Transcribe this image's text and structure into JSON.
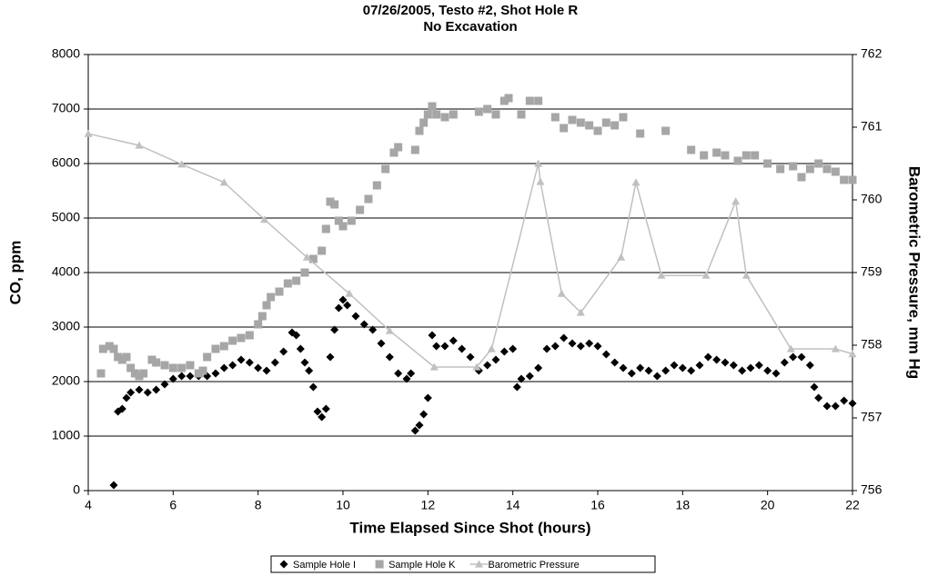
{
  "chart_data": {
    "type": "scatter",
    "title": "07/26/2005, Testo #2, Shot Hole R",
    "subtitle": "No Excavation",
    "x_label": "Time Elapsed Since Shot (hours)",
    "y_label": "CO, ppm",
    "y2_label": "Barometric Pressure, mm Hg",
    "xlim": [
      4,
      22
    ],
    "xticks": [
      4,
      6,
      8,
      10,
      12,
      14,
      16,
      18,
      20,
      22
    ],
    "ylim": [
      0,
      8000
    ],
    "yticks": [
      0,
      1000,
      2000,
      3000,
      4000,
      5000,
      6000,
      7000,
      8000
    ],
    "y2lim": [
      756,
      762
    ],
    "y2ticks": [
      756,
      757,
      758,
      759,
      760,
      761,
      762
    ],
    "grid": true,
    "legend": "bottom",
    "series": [
      {
        "name": "Sample Hole I",
        "color": "#000000",
        "marker": "diamond",
        "x": [
          4.6,
          4.7,
          4.8,
          4.9,
          5.0,
          5.2,
          5.4,
          5.6,
          5.8,
          6.0,
          6.2,
          6.4,
          6.6,
          6.8,
          7.0,
          7.2,
          7.4,
          7.6,
          7.8,
          8.0,
          8.2,
          8.4,
          8.6,
          8.8,
          8.9,
          9.0,
          9.1,
          9.2,
          9.3,
          9.4,
          9.5,
          9.6,
          9.7,
          9.8,
          9.9,
          10.0,
          10.1,
          10.3,
          10.5,
          10.7,
          10.9,
          11.1,
          11.3,
          11.5,
          11.6,
          11.7,
          11.8,
          11.9,
          12.0,
          12.1,
          12.2,
          12.4,
          12.6,
          12.8,
          13.0,
          13.2,
          13.4,
          13.6,
          13.8,
          14.0,
          14.1,
          14.2,
          14.4,
          14.6,
          14.8,
          15.0,
          15.2,
          15.4,
          15.6,
          15.8,
          16.0,
          16.2,
          16.4,
          16.6,
          16.8,
          17.0,
          17.2,
          17.4,
          17.6,
          17.8,
          18.0,
          18.2,
          18.4,
          18.6,
          18.8,
          19.0,
          19.2,
          19.4,
          19.6,
          19.8,
          20.0,
          20.2,
          20.4,
          20.6,
          20.8,
          21.0,
          21.1,
          21.2,
          21.4,
          21.6,
          21.8,
          22.0
        ],
        "values": [
          100,
          1450,
          1500,
          1700,
          1800,
          1850,
          1800,
          1850,
          1950,
          2050,
          2100,
          2100,
          2100,
          2100,
          2150,
          2250,
          2300,
          2400,
          2350,
          2250,
          2200,
          2350,
          2550,
          2900,
          2850,
          2600,
          2350,
          2200,
          1900,
          1450,
          1350,
          1500,
          2450,
          2950,
          3350,
          3500,
          3400,
          3200,
          3050,
          2950,
          2700,
          2450,
          2150,
          2050,
          2150,
          1100,
          1200,
          1400,
          1700,
          2850,
          2650,
          2650,
          2750,
          2600,
          2450,
          2200,
          2300,
          2400,
          2550,
          2600,
          1900,
          2050,
          2100,
          2250,
          2600,
          2650,
          2800,
          2700,
          2650,
          2700,
          2650,
          2500,
          2350,
          2250,
          2150,
          2250,
          2200,
          2100,
          2200,
          2300,
          2250,
          2200,
          2300,
          2450,
          2400,
          2350,
          2300,
          2200,
          2250,
          2300,
          2200,
          2150,
          2350,
          2450,
          2450,
          2300,
          1900,
          1700,
          1550,
          1550,
          1650,
          1600
        ]
      },
      {
        "name": "Sample Hole K",
        "color": "#a6a6a6",
        "marker": "square",
        "x": [
          4.3,
          4.35,
          4.5,
          4.6,
          4.7,
          4.8,
          4.9,
          5.0,
          5.1,
          5.2,
          5.3,
          5.5,
          5.6,
          5.8,
          6.0,
          6.2,
          6.4,
          6.6,
          6.7,
          6.8,
          7.0,
          7.2,
          7.4,
          7.6,
          7.8,
          8.0,
          8.1,
          8.2,
          8.3,
          8.5,
          8.7,
          8.9,
          9.1,
          9.3,
          9.5,
          9.6,
          9.7,
          9.8,
          9.9,
          10.0,
          10.2,
          10.4,
          10.6,
          10.8,
          11.0,
          11.2,
          11.3,
          11.7,
          11.8,
          11.9,
          12.0,
          12.1,
          12.2,
          12.4,
          12.6,
          13.2,
          13.4,
          13.6,
          13.8,
          13.9,
          14.2,
          14.4,
          14.6,
          15.0,
          15.2,
          15.4,
          15.6,
          15.8,
          16.0,
          16.2,
          16.4,
          16.6,
          17.0,
          17.6,
          18.2,
          18.5,
          18.8,
          19.0,
          19.3,
          19.5,
          19.7,
          20.0,
          20.3,
          20.6,
          20.8,
          21.0,
          21.2,
          21.4,
          21.6,
          21.8,
          22.0
        ],
        "values": [
          2150,
          2600,
          2650,
          2600,
          2450,
          2400,
          2450,
          2250,
          2150,
          2100,
          2150,
          2400,
          2350,
          2300,
          2250,
          2250,
          2300,
          2150,
          2200,
          2450,
          2600,
          2650,
          2750,
          2800,
          2850,
          3050,
          3200,
          3400,
          3550,
          3650,
          3800,
          3850,
          4000,
          4250,
          4400,
          4800,
          5300,
          5250,
          4950,
          4850,
          4950,
          5150,
          5350,
          5600,
          5900,
          6200,
          6300,
          6250,
          6600,
          6750,
          6900,
          7050,
          6900,
          6850,
          6900,
          6950,
          7000,
          6900,
          7150,
          7200,
          6900,
          7150,
          7150,
          6850,
          6650,
          6800,
          6750,
          6700,
          6600,
          6750,
          6700,
          6850,
          6550,
          6600,
          6250,
          6150,
          6200,
          6150,
          6050,
          6150,
          6150,
          6000,
          5900,
          5950,
          5750,
          5900,
          6000,
          5900,
          5850,
          5700,
          5700
        ]
      },
      {
        "name": "Barometric Pressure",
        "color": "#c0c0c0",
        "marker": "triangle",
        "axis": "y2",
        "x": [
          4.0,
          5.2,
          6.2,
          7.2,
          8.15,
          9.15,
          10.15,
          11.1,
          12.15,
          13.15,
          13.5,
          14.6,
          14.65,
          15.15,
          15.6,
          16.55,
          16.9,
          17.5,
          18.55,
          19.25,
          19.5,
          20.55,
          21.6,
          22.0
        ],
        "values": [
          760.91,
          760.75,
          760.49,
          760.24,
          759.73,
          759.21,
          758.71,
          758.2,
          757.7,
          757.7,
          757.95,
          760.5,
          760.25,
          758.71,
          758.45,
          759.21,
          760.24,
          758.96,
          758.96,
          759.98,
          758.96,
          757.95,
          757.95,
          757.88
        ]
      }
    ]
  }
}
